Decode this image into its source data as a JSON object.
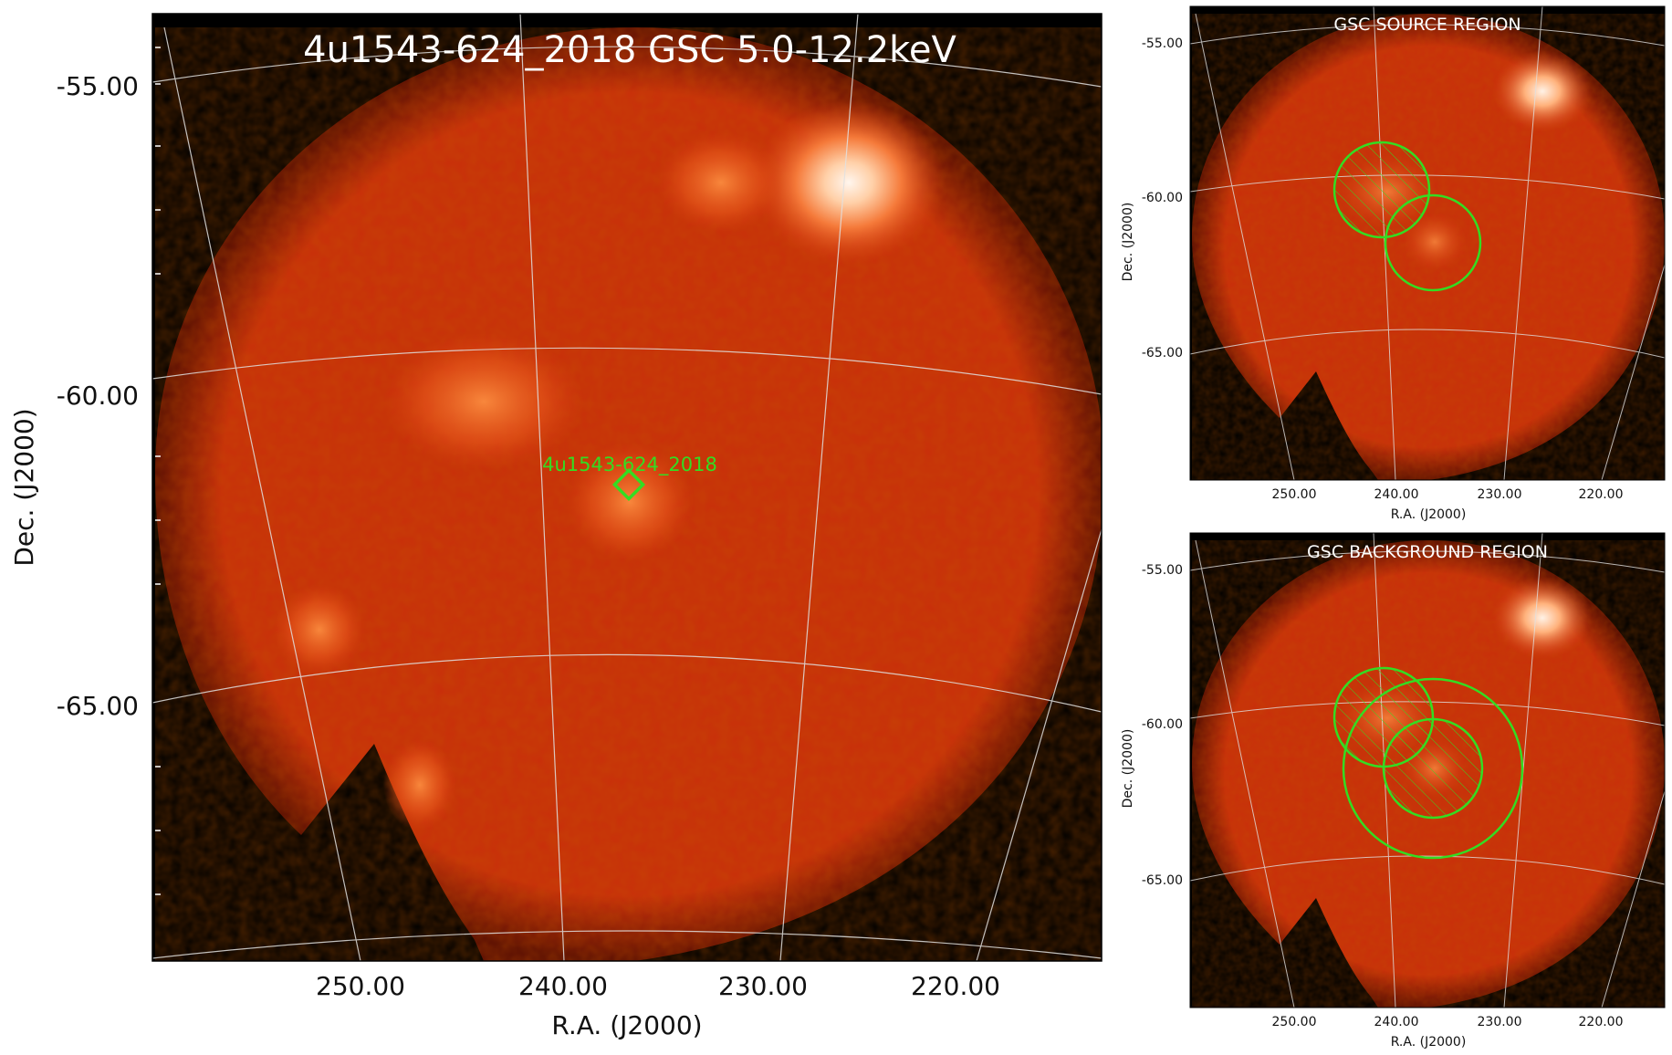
{
  "main_panel": {
    "title": "4u1543-624_2018 GSC 5.0-12.2keV",
    "xlabel": "R.A. (J2000)",
    "ylabel": "Dec. (J2000)",
    "x_ticks": [
      "250.00",
      "240.00",
      "230.00",
      "220.00"
    ],
    "y_ticks": [
      "-55.00",
      "-60.00",
      "-65.00"
    ],
    "source_label": "4u1543-624_2018"
  },
  "source_panel": {
    "title": "GSC SOURCE REGION",
    "xlabel": "R.A. (J2000)",
    "ylabel": "Dec. (J2000)",
    "x_ticks": [
      "250.00",
      "240.00",
      "230.00",
      "220.00"
    ],
    "y_ticks": [
      "-55.00",
      "-60.00",
      "-65.00"
    ]
  },
  "background_panel": {
    "title": "GSC BACKGROUND REGION",
    "xlabel": "R.A. (J2000)",
    "ylabel": "Dec. (J2000)",
    "x_ticks": [
      "250.00",
      "240.00",
      "230.00",
      "220.00"
    ],
    "y_ticks": [
      "-55.00",
      "-60.00",
      "-65.00"
    ]
  },
  "colors": {
    "sky_background": "#000000",
    "map_base": "#c82e0a",
    "bright_source": "#fff4e8",
    "region_marker": "#33dd22",
    "grid": "#e0e0e0"
  }
}
